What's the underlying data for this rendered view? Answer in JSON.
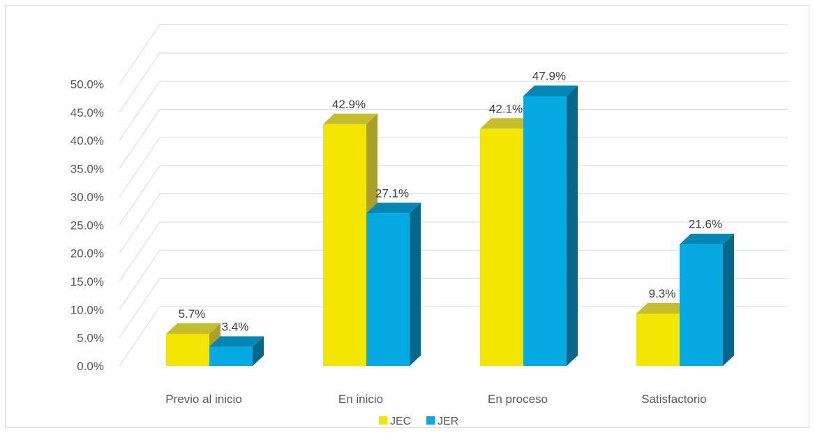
{
  "chart_data": {
    "type": "bar",
    "title": "",
    "xlabel": "",
    "ylabel": "",
    "ylim": [
      0,
      50
    ],
    "y_ticks": [
      "0.0%",
      "5.0%",
      "10.0%",
      "15.0%",
      "20.0%",
      "25.0%",
      "30.0%",
      "35.0%",
      "40.0%",
      "45.0%",
      "50.0%"
    ],
    "categories": [
      "Previo al inicio",
      "En inicio",
      "En proceso",
      "Satisfactorio"
    ],
    "series": [
      {
        "name": "JEC",
        "color": "#f2e600",
        "side_color": "#a7a02d",
        "top_color": "#c6bd2c",
        "values": [
          5.7,
          42.9,
          42.1,
          9.3
        ],
        "labels": [
          "5.7%",
          "42.9%",
          "42.1%",
          "9.3%"
        ]
      },
      {
        "name": "JER",
        "color": "#06a9e2",
        "side_color": "#05688b",
        "top_color": "#0587b6",
        "values": [
          3.4,
          27.1,
          47.9,
          21.6
        ],
        "labels": [
          "3.4%",
          "27.1%",
          "47.9%",
          "21.6%"
        ]
      }
    ],
    "grid": true,
    "legend_position": "bottom",
    "style": "3d-clustered-column"
  }
}
